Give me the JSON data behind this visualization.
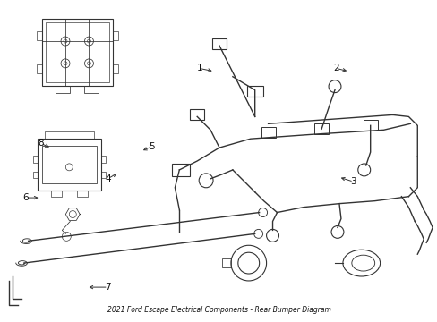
{
  "title": "2021 Ford Escape Electrical Components - Rear Bumper Diagram",
  "background_color": "#ffffff",
  "line_color": "#333333",
  "text_color": "#111111",
  "figure_width": 4.89,
  "figure_height": 3.6,
  "dpi": 100,
  "callouts": {
    "7": [
      0.245,
      0.895,
      0.195,
      0.895
    ],
    "6": [
      0.055,
      0.615,
      0.09,
      0.615
    ],
    "8": [
      0.09,
      0.445,
      0.115,
      0.46
    ],
    "3": [
      0.81,
      0.565,
      0.775,
      0.55
    ],
    "4": [
      0.245,
      0.555,
      0.27,
      0.535
    ],
    "5": [
      0.345,
      0.455,
      0.32,
      0.47
    ],
    "1": [
      0.455,
      0.21,
      0.49,
      0.22
    ],
    "2": [
      0.77,
      0.21,
      0.8,
      0.22
    ]
  }
}
